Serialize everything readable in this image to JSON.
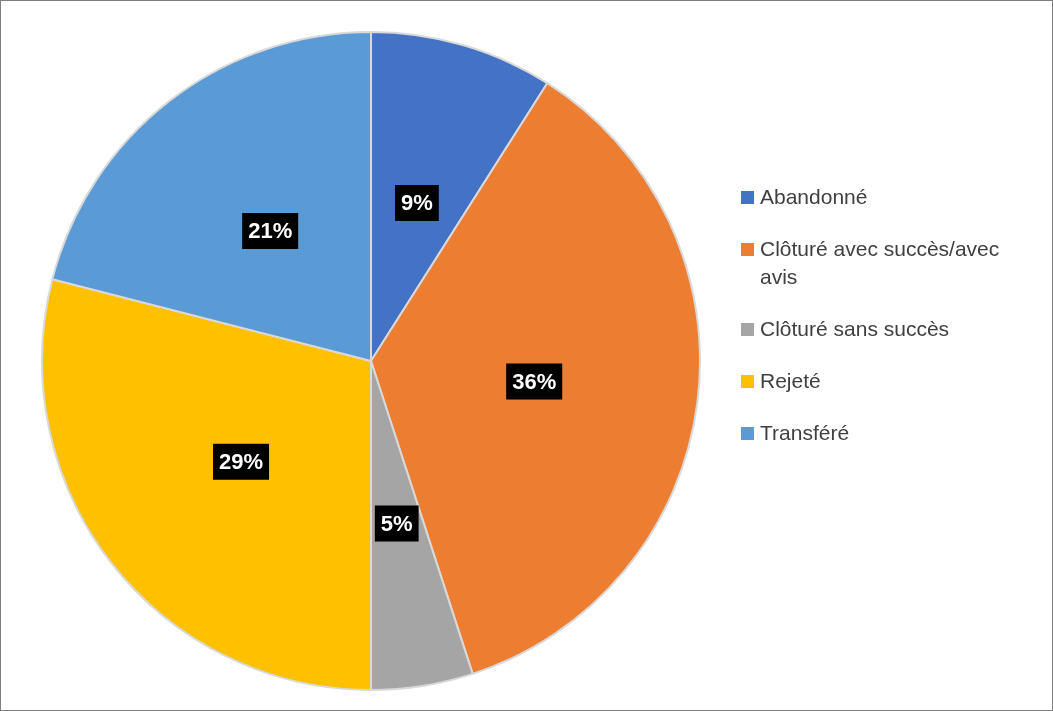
{
  "chart_data": {
    "type": "pie",
    "categories": [
      "Abandonné",
      "Clôturé avec succès/avec avis",
      "Clôturé sans succès",
      "Rejeté",
      "Transféré"
    ],
    "values": [
      9,
      36,
      5,
      29,
      21
    ],
    "value_labels": [
      "9%",
      "36%",
      "5%",
      "29%",
      "21%"
    ],
    "colors": [
      "#4472c4",
      "#ed7d31",
      "#a5a5a5",
      "#ffc000",
      "#5b9bd5"
    ],
    "legend": "right"
  }
}
